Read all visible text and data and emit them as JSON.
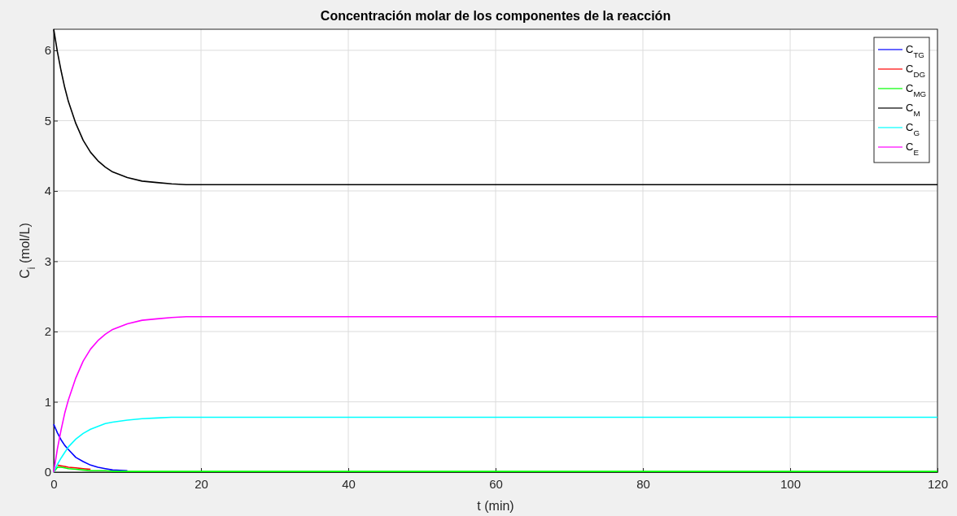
{
  "chart_data": {
    "type": "line",
    "title": "Concentración molar de los componentes de la reacción",
    "xlabel": "t (min)",
    "ylabel": "C$_{i}$ (mol/L)",
    "x": [
      0,
      0.5,
      1,
      1.5,
      2,
      3,
      4,
      5,
      6,
      7,
      8,
      10,
      12,
      14,
      16,
      18,
      20,
      25,
      30,
      40,
      60,
      80,
      100,
      120
    ],
    "series": [
      {
        "name": "C$_{TG}$",
        "color": "#0000ff",
        "values": [
          0.68,
          0.56,
          0.46,
          0.38,
          0.32,
          0.21,
          0.15,
          0.1,
          0.07,
          0.05,
          0.03,
          0.02,
          null,
          null,
          null,
          null,
          null,
          null,
          null,
          null,
          null,
          null,
          null,
          null
        ]
      },
      {
        "name": "C$_{DG}$",
        "color": "#ff0000",
        "values": [
          null,
          0.1,
          0.09,
          0.08,
          0.07,
          0.06,
          0.05,
          0.04,
          null,
          null,
          null,
          null,
          null,
          null,
          null,
          null,
          null,
          null,
          null,
          null,
          null,
          null,
          null,
          null
        ]
      },
      {
        "name": "C$_{MG}$",
        "color": "#00ff00",
        "values": [
          0,
          0.07,
          0.07,
          0.06,
          0.05,
          0.04,
          0.03,
          0.02,
          0.02,
          0.02,
          0.01,
          0.01,
          0.01,
          0.01,
          0.01,
          0.01,
          0.01,
          0.01,
          0.01,
          0.01,
          0.01,
          0.01,
          0.01,
          0.01
        ]
      },
      {
        "name": "C$_{M}$",
        "color": "#000000",
        "values": [
          6.3,
          5.98,
          5.71,
          5.47,
          5.27,
          4.96,
          4.72,
          4.55,
          4.43,
          4.34,
          4.27,
          4.19,
          4.14,
          4.12,
          4.1,
          4.09,
          4.09,
          4.09,
          4.09,
          4.09,
          4.09,
          4.09,
          4.09,
          4.09
        ]
      },
      {
        "name": "C$_{G}$",
        "color": "#00ffff",
        "values": [
          0,
          0.11,
          0.2,
          0.28,
          0.36,
          0.47,
          0.55,
          0.61,
          0.65,
          0.69,
          0.71,
          0.74,
          0.76,
          0.77,
          0.78,
          0.78,
          0.78,
          0.78,
          0.78,
          0.78,
          0.78,
          0.78,
          0.78,
          0.78
        ]
      },
      {
        "name": "C$_{E}$",
        "color": "#ff00ff",
        "values": [
          0,
          0.33,
          0.6,
          0.84,
          1.03,
          1.34,
          1.58,
          1.75,
          1.87,
          1.96,
          2.03,
          2.11,
          2.16,
          2.18,
          2.2,
          2.21,
          2.21,
          2.21,
          2.21,
          2.21,
          2.21,
          2.21,
          2.21,
          2.21
        ]
      }
    ],
    "xlim": [
      0,
      120
    ],
    "xticks": [
      0,
      20,
      40,
      60,
      80,
      100,
      120
    ],
    "ylim": [
      0,
      6.3
    ],
    "yticks": [
      0,
      1,
      2,
      3,
      4,
      5,
      6
    ],
    "grid": true,
    "legend": "top right",
    "line_style": "solid",
    "marker": "none"
  }
}
